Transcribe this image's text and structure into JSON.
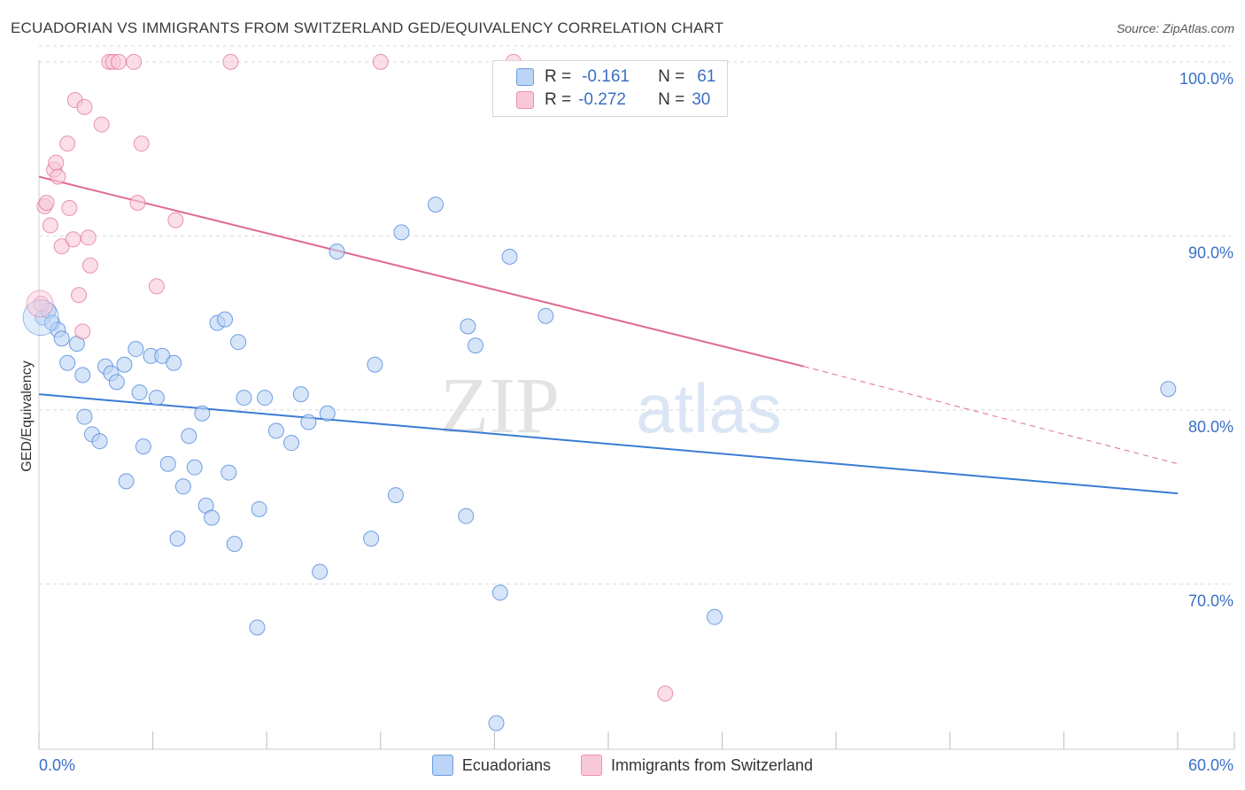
{
  "title": "ECUADORIAN VS IMMIGRANTS FROM SWITZERLAND GED/EQUIVALENCY CORRELATION CHART",
  "source": "Source: ZipAtlas.com",
  "watermark": {
    "zip": "ZIP",
    "atlas": "atlas"
  },
  "colors": {
    "blue": "#3a7bd5",
    "blue_fill": "#bcd4f5",
    "pink": "#e06b94",
    "pink_fill": "#f9c8d7",
    "grid": "#d9d9d9",
    "tick_label": "#3a6fc4"
  },
  "legend_top": {
    "rows": [
      {
        "r_label": "R =",
        "r_value": "-0.161",
        "n_label": "N =",
        "n_value": "61"
      },
      {
        "r_label": "R =",
        "r_value": "-0.272",
        "n_label": "N =",
        "n_value": "30"
      }
    ]
  },
  "legend_bottom": [
    "Ecuadorians",
    "Immigrants from Switzerland"
  ],
  "chart_data": {
    "type": "scatter",
    "title": "ECUADORIAN VS IMMIGRANTS FROM SWITZERLAND GED/EQUIVALENCY CORRELATION CHART",
    "xlabel": "",
    "ylabel": "GED/Equivalency",
    "xlim": [
      0,
      60
    ],
    "ylim": [
      60.5,
      100.5
    ],
    "x_tick_labels": [
      "0.0%",
      "60.0%"
    ],
    "y_ticks": [
      70,
      80,
      90,
      100
    ],
    "y_tick_labels": [
      "70.0%",
      "80.0%",
      "90.0%",
      "100.0%"
    ],
    "grid": true,
    "series": [
      {
        "name": "Ecuadorians",
        "r": -0.161,
        "n": 61,
        "trend": {
          "x0": 0,
          "y0": 80.9,
          "x1": 60,
          "y1": 75.2
        },
        "points": [
          [
            0.2,
            85.3
          ],
          [
            0.5,
            85.7
          ],
          [
            0.7,
            85.0
          ],
          [
            1.0,
            84.6
          ],
          [
            1.2,
            84.1
          ],
          [
            1.5,
            82.7
          ],
          [
            2.0,
            83.8
          ],
          [
            2.3,
            82.0
          ],
          [
            2.4,
            79.6
          ],
          [
            2.8,
            78.6
          ],
          [
            3.2,
            78.2
          ],
          [
            3.5,
            82.5
          ],
          [
            3.8,
            82.1
          ],
          [
            4.1,
            81.6
          ],
          [
            4.5,
            82.6
          ],
          [
            4.6,
            75.9
          ],
          [
            5.1,
            83.5
          ],
          [
            5.3,
            81.0
          ],
          [
            5.5,
            77.9
          ],
          [
            5.9,
            83.1
          ],
          [
            6.2,
            80.7
          ],
          [
            6.5,
            83.1
          ],
          [
            6.8,
            76.9
          ],
          [
            7.1,
            82.7
          ],
          [
            7.3,
            72.6
          ],
          [
            7.6,
            75.6
          ],
          [
            7.9,
            78.5
          ],
          [
            8.2,
            76.7
          ],
          [
            8.6,
            79.8
          ],
          [
            8.8,
            74.5
          ],
          [
            9.1,
            73.8
          ],
          [
            9.4,
            85.0
          ],
          [
            9.8,
            85.2
          ],
          [
            10.0,
            76.4
          ],
          [
            10.3,
            72.3
          ],
          [
            10.5,
            83.9
          ],
          [
            10.8,
            80.7
          ],
          [
            11.5,
            67.5
          ],
          [
            11.6,
            74.3
          ],
          [
            11.9,
            80.7
          ],
          [
            12.5,
            78.8
          ],
          [
            13.3,
            78.1
          ],
          [
            13.8,
            80.9
          ],
          [
            14.2,
            79.3
          ],
          [
            14.8,
            70.7
          ],
          [
            15.2,
            79.8
          ],
          [
            15.7,
            89.1
          ],
          [
            17.5,
            72.6
          ],
          [
            17.7,
            82.6
          ],
          [
            18.8,
            75.1
          ],
          [
            19.1,
            90.2
          ],
          [
            20.9,
            91.8
          ],
          [
            22.5,
            73.9
          ],
          [
            22.6,
            84.8
          ],
          [
            23.0,
            83.7
          ],
          [
            24.1,
            62.0
          ],
          [
            24.3,
            69.5
          ],
          [
            24.8,
            88.8
          ],
          [
            26.7,
            85.4
          ],
          [
            35.6,
            68.1
          ],
          [
            59.5,
            81.2
          ]
        ]
      },
      {
        "name": "Immigrants from Switzerland",
        "r": -0.272,
        "n": 30,
        "trend": {
          "x0": 0,
          "y0": 93.4,
          "x1": 40.3,
          "y1": 82.5
        },
        "trend_dashed": {
          "x0": 40.3,
          "y0": 82.5,
          "x1": 60,
          "y1": 76.9
        },
        "points": [
          [
            0.1,
            86.1
          ],
          [
            0.3,
            91.7
          ],
          [
            0.4,
            91.9
          ],
          [
            0.6,
            90.6
          ],
          [
            0.8,
            93.8
          ],
          [
            0.9,
            94.2
          ],
          [
            1.0,
            93.4
          ],
          [
            1.2,
            89.4
          ],
          [
            1.5,
            95.3
          ],
          [
            1.6,
            91.6
          ],
          [
            1.8,
            89.8
          ],
          [
            1.9,
            97.8
          ],
          [
            2.1,
            86.6
          ],
          [
            2.3,
            84.5
          ],
          [
            2.4,
            97.4
          ],
          [
            2.6,
            89.9
          ],
          [
            2.7,
            88.3
          ],
          [
            3.3,
            96.4
          ],
          [
            3.7,
            100.0
          ],
          [
            3.9,
            100.0
          ],
          [
            4.2,
            100.0
          ],
          [
            5.0,
            100.0
          ],
          [
            5.2,
            91.9
          ],
          [
            5.4,
            95.3
          ],
          [
            6.2,
            87.1
          ],
          [
            7.2,
            90.9
          ],
          [
            10.1,
            100.0
          ],
          [
            18.0,
            100.0
          ],
          [
            25.0,
            100.0
          ],
          [
            33.0,
            63.7
          ]
        ]
      }
    ]
  }
}
